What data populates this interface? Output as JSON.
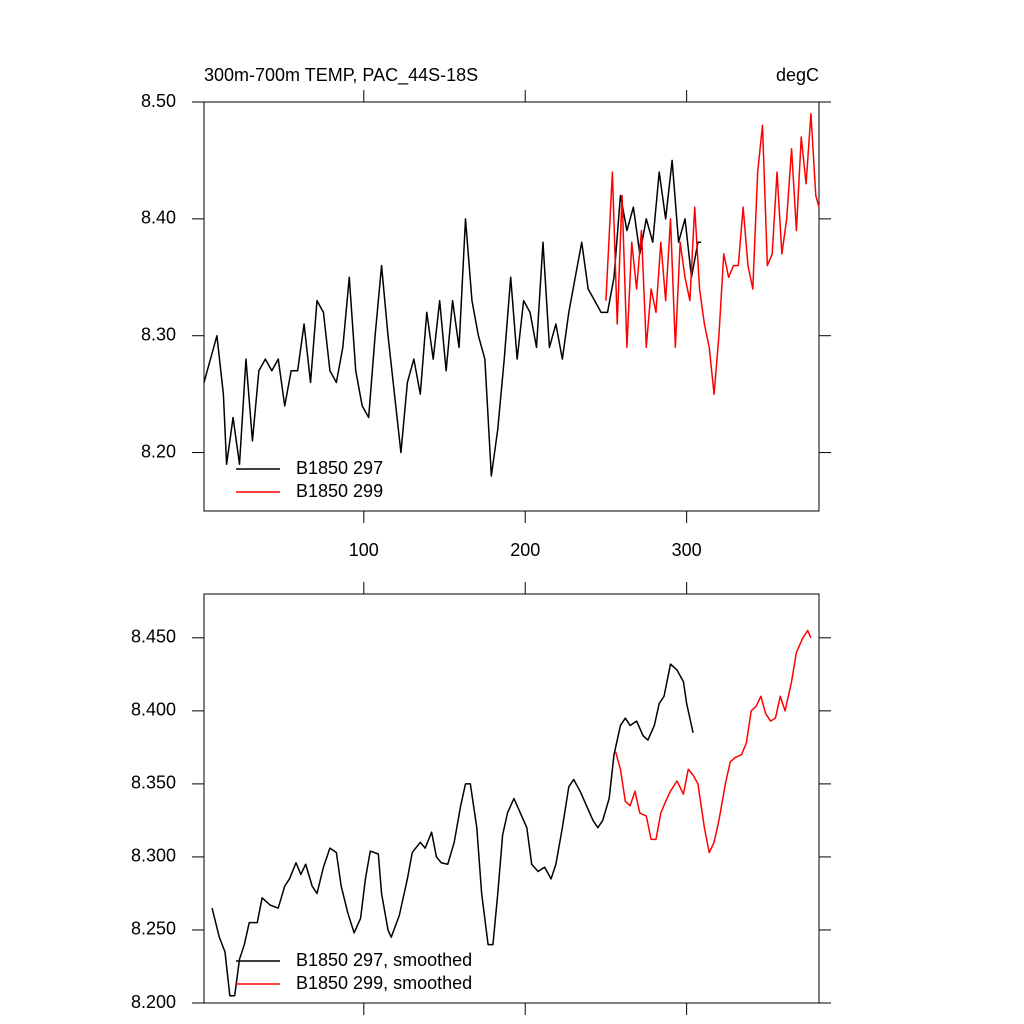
{
  "chart_data": [
    {
      "type": "line",
      "title": "300m-700m TEMP, PAC_44S-18S",
      "units": "degC",
      "xlim": [
        1,
        382
      ],
      "xticks": [
        100,
        200,
        300
      ],
      "xtick_labels": true,
      "ylim": [
        8.15,
        8.5
      ],
      "yticks": [
        {
          "value": 8.2,
          "label": "8.20"
        },
        {
          "value": 8.3,
          "label": "8.30"
        },
        {
          "value": 8.4,
          "label": "8.40"
        },
        {
          "value": 8.5,
          "label": "8.50"
        }
      ],
      "series": [
        {
          "name": "B1850 297",
          "color": "#000000",
          "x": [
            1,
            5,
            9,
            13,
            15,
            19,
            23,
            27,
            31,
            35,
            39,
            43,
            47,
            51,
            55,
            59,
            63,
            67,
            71,
            75,
            79,
            83,
            87,
            91,
            95,
            99,
            103,
            107,
            111,
            115,
            119,
            123,
            127,
            131,
            135,
            139,
            143,
            147,
            151,
            155,
            159,
            163,
            167,
            171,
            175,
            179,
            183,
            187,
            191,
            195,
            199,
            203,
            207,
            211,
            215,
            219,
            223,
            227,
            231,
            235,
            239,
            243,
            247,
            251,
            255,
            259,
            263,
            267,
            271,
            275,
            279,
            283,
            287,
            291,
            295,
            299,
            303,
            307,
            309
          ],
          "values": [
            8.26,
            8.28,
            8.3,
            8.25,
            8.19,
            8.23,
            8.19,
            8.28,
            8.21,
            8.27,
            8.28,
            8.27,
            8.28,
            8.24,
            8.27,
            8.27,
            8.31,
            8.26,
            8.33,
            8.32,
            8.27,
            8.26,
            8.29,
            8.35,
            8.27,
            8.24,
            8.23,
            8.3,
            8.36,
            8.3,
            8.25,
            8.2,
            8.26,
            8.28,
            8.25,
            8.32,
            8.28,
            8.33,
            8.27,
            8.33,
            8.29,
            8.4,
            8.33,
            8.3,
            8.28,
            8.18,
            8.22,
            8.28,
            8.35,
            8.28,
            8.33,
            8.32,
            8.29,
            8.38,
            8.29,
            8.31,
            8.28,
            8.32,
            8.35,
            8.38,
            8.34,
            8.33,
            8.32,
            8.32,
            8.35,
            8.42,
            8.39,
            8.41,
            8.37,
            8.4,
            8.38,
            8.44,
            8.4,
            8.45,
            8.38,
            8.4,
            8.35,
            8.38,
            8.38
          ]
        },
        {
          "name": "B1850 299",
          "color": "#ff0000",
          "x": [
            250,
            254,
            257,
            260,
            263,
            266,
            269,
            272,
            275,
            278,
            281,
            284,
            287,
            290,
            293,
            296,
            299,
            302,
            305,
            308,
            311,
            314,
            317,
            320,
            323,
            326,
            329,
            332,
            335,
            338,
            341,
            344,
            347,
            350,
            353,
            356,
            359,
            362,
            365,
            368,
            371,
            374,
            377,
            380,
            382
          ],
          "values": [
            8.33,
            8.44,
            8.31,
            8.42,
            8.29,
            8.38,
            8.34,
            8.39,
            8.29,
            8.34,
            8.32,
            8.38,
            8.33,
            8.4,
            8.29,
            8.38,
            8.35,
            8.33,
            8.41,
            8.34,
            8.31,
            8.29,
            8.25,
            8.3,
            8.37,
            8.35,
            8.36,
            8.36,
            8.41,
            8.36,
            8.34,
            8.44,
            8.48,
            8.36,
            8.37,
            8.44,
            8.37,
            8.4,
            8.46,
            8.39,
            8.47,
            8.43,
            8.49,
            8.42,
            8.41
          ]
        }
      ]
    },
    {
      "type": "line",
      "xlim": [
        1,
        382
      ],
      "xticks": [
        100,
        200,
        300
      ],
      "xtick_labels": false,
      "ylim": [
        8.2,
        8.48
      ],
      "yticks": [
        {
          "value": 8.2,
          "label": "8.200"
        },
        {
          "value": 8.25,
          "label": "8.250"
        },
        {
          "value": 8.3,
          "label": "8.300"
        },
        {
          "value": 8.35,
          "label": "8.350"
        },
        {
          "value": 8.4,
          "label": "8.400"
        },
        {
          "value": 8.45,
          "label": "8.450"
        }
      ],
      "series": [
        {
          "name": "B1850 297, smoothed",
          "color": "#000000",
          "x": [
            6,
            10.5,
            14,
            17,
            20,
            23,
            26,
            29,
            34,
            37,
            42,
            47,
            51,
            54,
            58,
            61,
            64,
            68,
            71,
            75,
            79,
            83,
            86,
            90,
            94,
            98,
            101,
            104,
            109,
            111,
            115,
            117,
            122,
            127,
            130,
            135,
            138,
            142,
            145,
            148,
            152,
            156,
            160,
            163,
            166,
            170,
            173,
            177,
            180,
            183,
            186,
            189,
            193,
            197,
            201,
            204,
            208,
            212,
            216,
            219,
            223,
            227,
            230,
            234,
            238,
            242,
            245,
            248,
            252,
            255,
            259,
            262,
            265,
            269,
            273,
            276,
            280,
            283,
            286,
            290,
            294,
            298,
            300,
            304
          ],
          "values": [
            8.265,
            8.245,
            8.235,
            8.205,
            8.205,
            8.23,
            8.24,
            8.255,
            8.255,
            8.272,
            8.267,
            8.265,
            8.28,
            8.285,
            8.296,
            8.288,
            8.295,
            8.28,
            8.275,
            8.293,
            8.306,
            8.303,
            8.28,
            8.262,
            8.248,
            8.258,
            8.285,
            8.304,
            8.302,
            8.275,
            8.25,
            8.245,
            8.26,
            8.285,
            8.303,
            8.31,
            8.306,
            8.317,
            8.3,
            8.296,
            8.295,
            8.31,
            8.335,
            8.35,
            8.35,
            8.32,
            8.275,
            8.24,
            8.24,
            8.275,
            8.315,
            8.33,
            8.34,
            8.33,
            8.32,
            8.295,
            8.29,
            8.293,
            8.285,
            8.295,
            8.32,
            8.348,
            8.353,
            8.345,
            8.335,
            8.325,
            8.32,
            8.325,
            8.34,
            8.37,
            8.39,
            8.395,
            8.39,
            8.393,
            8.383,
            8.38,
            8.39,
            8.405,
            8.41,
            8.432,
            8.428,
            8.42,
            8.405,
            8.385
          ]
        },
        {
          "name": "B1850 299, smoothed",
          "color": "#ff0000",
          "x": [
            256,
            259,
            262,
            265,
            268,
            271,
            275,
            278,
            281,
            284,
            287,
            290,
            294,
            298,
            301,
            304,
            307,
            311,
            314,
            317,
            320,
            324,
            327,
            330,
            334,
            337,
            340,
            343,
            346,
            349,
            352,
            355,
            358,
            361,
            365,
            368,
            372,
            375,
            377
          ],
          "values": [
            8.372,
            8.36,
            8.338,
            8.335,
            8.345,
            8.33,
            8.328,
            8.312,
            8.312,
            8.33,
            8.338,
            8.345,
            8.352,
            8.343,
            8.36,
            8.356,
            8.35,
            8.32,
            8.303,
            8.31,
            8.325,
            8.35,
            8.365,
            8.368,
            8.37,
            8.378,
            8.4,
            8.403,
            8.41,
            8.398,
            8.393,
            8.395,
            8.41,
            8.4,
            8.42,
            8.44,
            8.45,
            8.455,
            8.45
          ]
        }
      ]
    }
  ]
}
